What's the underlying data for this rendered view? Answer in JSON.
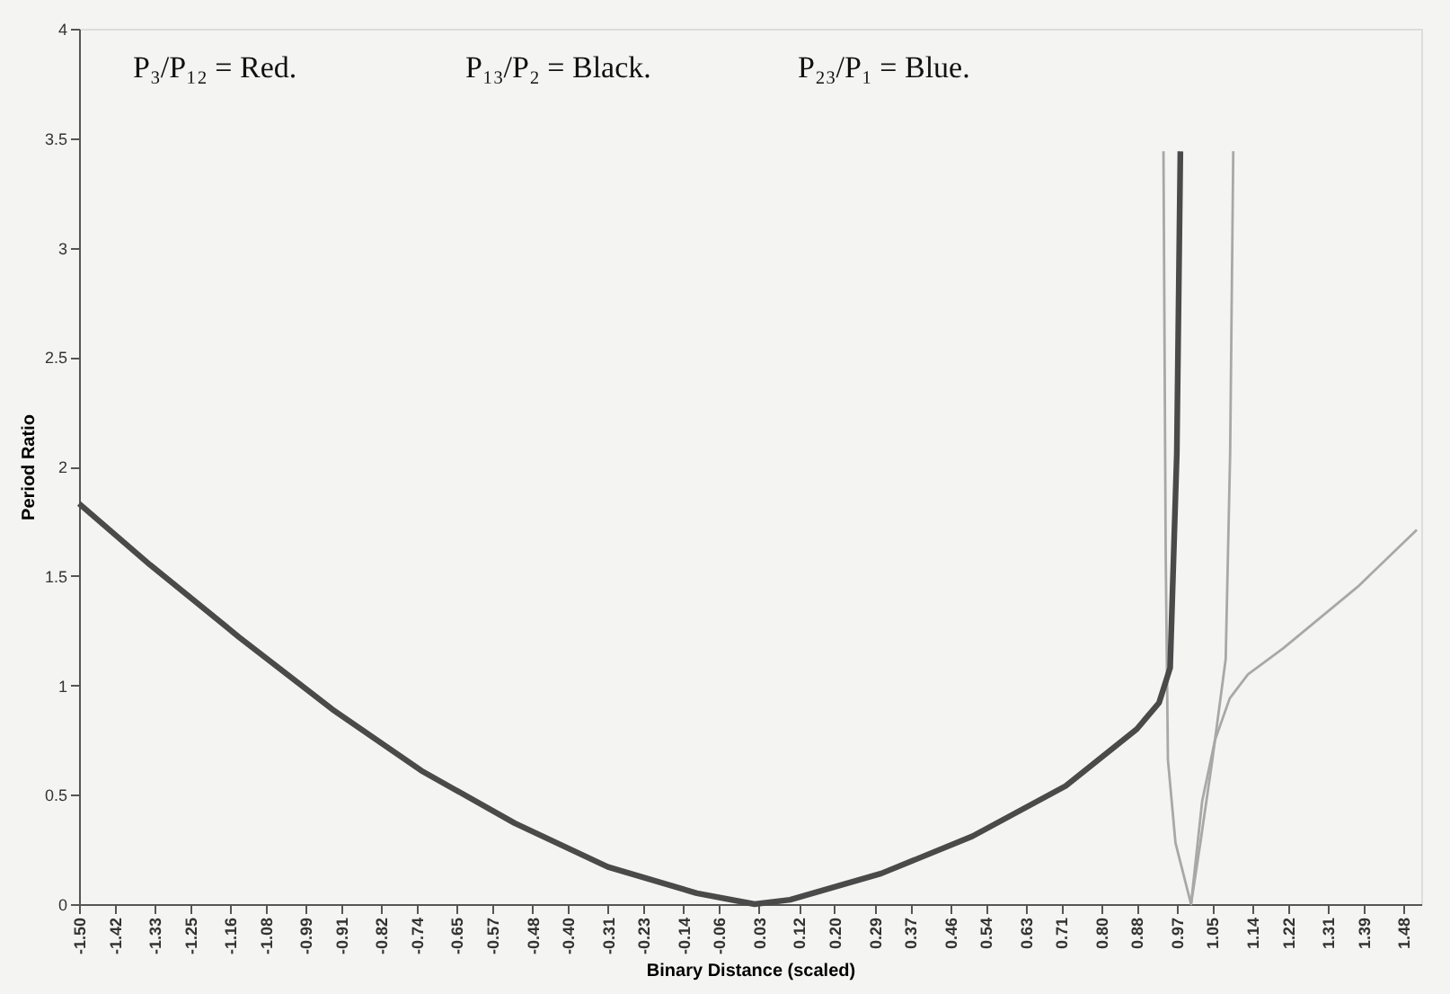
{
  "chart_data": {
    "type": "line",
    "xlabel": "Binary Distance (scaled)",
    "ylabel": "Period Ratio",
    "annotations": [
      "P₃/P₁₂ = Red.",
      "P₁₃/P₂ = Black.",
      "P₂₃/P₁ = Blue."
    ],
    "xlim": [
      -1.5,
      1.52
    ],
    "ylim": [
      0,
      4
    ],
    "xticks": [
      {
        "value": -1.5,
        "label": "-1.50"
      },
      -1.42,
      -1.33,
      -1.25,
      -1.16,
      -1.08,
      -0.99,
      -0.91,
      -0.82,
      -0.74,
      -0.65,
      -0.57,
      -0.48,
      {
        "value": -0.4,
        "label": "-0.40"
      },
      -0.31,
      -0.23,
      -0.14,
      -0.06,
      0.03,
      0.12,
      {
        "value": 0.2,
        "label": "0.20"
      },
      0.29,
      0.37,
      0.46,
      0.54,
      0.63,
      0.71,
      {
        "value": 0.8,
        "label": "0.80"
      },
      0.88,
      0.97,
      1.05,
      1.14,
      1.22,
      1.31,
      1.39,
      1.48
    ],
    "yticks": [
      0,
      0.5,
      1,
      1.5,
      2,
      2.5,
      3,
      3.5,
      4
    ],
    "grid": false,
    "marker": "none",
    "line_style": "solid",
    "series": [
      {
        "color": "#a8a8a8",
        "x": [
          0.94,
          0.945,
          0.95,
          0.967,
          1.002,
          1.023,
          1.05,
          1.08,
          1.09,
          1.097
        ],
        "values": [
          3.44,
          1.6,
          0.66,
          0.28,
          0,
          0.28,
          0.66,
          1.12,
          2.06,
          3.44
        ]
      },
      {
        "color": "#4a4a4a",
        "x": [
          -1.5,
          -1.34,
          -1.14,
          -0.93,
          -0.73,
          -0.52,
          -0.31,
          -0.11,
          0.02,
          0.1,
          0.305,
          0.51,
          0.72,
          0.88,
          0.93,
          0.955,
          0.97,
          0.978
        ],
        "values": [
          1.83,
          1.55,
          1.22,
          0.89,
          0.61,
          0.37,
          0.17,
          0.05,
          0,
          0.02,
          0.14,
          0.31,
          0.54,
          0.8,
          0.92,
          1.08,
          2.06,
          3.44
        ]
      },
      {
        "color": "#a8a8a8",
        "x": [
          1.002,
          1.027,
          1.056,
          1.089,
          1.13,
          1.21,
          1.377,
          1.51
        ],
        "values": [
          0,
          0.47,
          0.75,
          0.94,
          1.05,
          1.17,
          1.45,
          1.71
        ]
      }
    ]
  }
}
